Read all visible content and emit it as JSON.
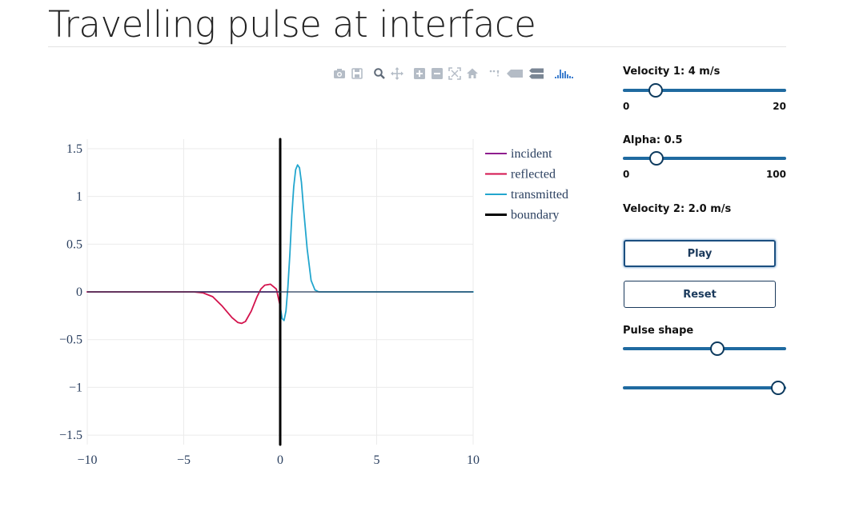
{
  "page": {
    "title": "Travelling pulse at interface"
  },
  "modebar": {
    "icons": [
      "camera-icon",
      "save-icon",
      "zoom-icon",
      "pan-icon",
      "zoom-in-icon",
      "zoom-out-icon",
      "autoscale-icon",
      "home-icon",
      "spike-lines-icon",
      "hover-closest-icon",
      "hover-compare-icon",
      "plotly-logo-icon"
    ]
  },
  "chart_data": {
    "type": "line",
    "title": "",
    "xlabel": "",
    "ylabel": "",
    "xlim": [
      -10,
      10
    ],
    "ylim": [
      -1.6,
      1.6
    ],
    "x_ticks": [
      -10,
      -5,
      0,
      5,
      10
    ],
    "x_tick_labels": [
      "−10",
      "−5",
      "0",
      "5",
      "10"
    ],
    "y_ticks": [
      1.5,
      1,
      0.5,
      0,
      -0.5,
      -1,
      -1.5
    ],
    "y_tick_labels": [
      "1.5",
      "1",
      "0.5",
      "0",
      "−0.5",
      "−1",
      "−1.5"
    ],
    "grid": true,
    "legend_position": "top-right",
    "series": [
      {
        "name": "incident",
        "color": "#8e1e8e",
        "x": [
          -10,
          0
        ],
        "y": [
          0,
          0
        ]
      },
      {
        "name": "reflected",
        "color": "#d3134d",
        "x": [
          -10,
          -4.5,
          -4,
          -3.5,
          -3,
          -2.5,
          -2.2,
          -2,
          -1.8,
          -1.5,
          -1.2,
          -1,
          -0.8,
          -0.5,
          -0.2,
          0
        ],
        "y": [
          0,
          0,
          -0.01,
          -0.05,
          -0.15,
          -0.27,
          -0.32,
          -0.33,
          -0.31,
          -0.2,
          -0.05,
          0.03,
          0.07,
          0.08,
          0.03,
          -0.15
        ]
      },
      {
        "name": "transmitted",
        "color": "#22a6ce",
        "x": [
          0,
          0.1,
          0.2,
          0.3,
          0.4,
          0.5,
          0.6,
          0.7,
          0.8,
          0.9,
          1.0,
          1.1,
          1.2,
          1.4,
          1.6,
          1.8,
          2.0,
          10
        ],
        "y": [
          -0.15,
          -0.28,
          -0.3,
          -0.2,
          0.05,
          0.4,
          0.8,
          1.1,
          1.28,
          1.33,
          1.3,
          1.15,
          0.9,
          0.45,
          0.12,
          0.02,
          0,
          0
        ]
      },
      {
        "name": "boundary",
        "color": "#000000",
        "x": [
          0,
          0
        ],
        "y": [
          -1.6,
          1.6
        ]
      }
    ]
  },
  "controls": {
    "velocity1": {
      "label": "Velocity 1: 4 m/s",
      "value": 4,
      "min": 0,
      "max": 20,
      "min_label": "0",
      "max_label": "20"
    },
    "alpha": {
      "label": "Alpha: 0.5",
      "value": 0.5,
      "slider_fraction": 0.205,
      "min": 0,
      "max": 100,
      "min_label": "0",
      "max_label": "100"
    },
    "velocity2": {
      "label": "Velocity 2: 2.0 m/s"
    },
    "play_label": "Play",
    "reset_label": "Reset",
    "pulse_shape": {
      "label": "Pulse shape",
      "slider1_fraction": 0.58,
      "slider2_fraction": 0.95
    }
  }
}
